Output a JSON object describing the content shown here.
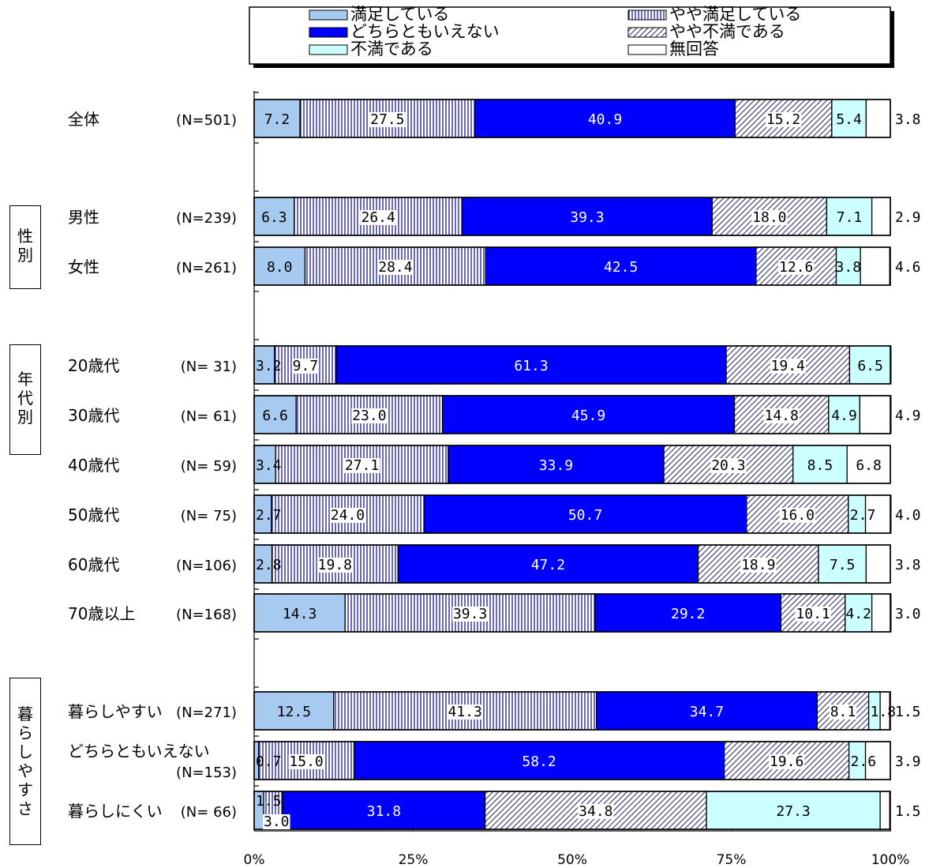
{
  "legend": {
    "items": [
      "満足している",
      "やや満足している",
      "どちらともいえない",
      "やや不満である",
      "不満である",
      "無回答"
    ]
  },
  "groups": [
    {
      "label": "性別"
    },
    {
      "label": "年代別"
    },
    {
      "label": "暮らしやすさ"
    }
  ],
  "colors": {
    "satisfied": "#a6caf0",
    "neutral": "#0000ff",
    "dissatisfied": "#ccffff",
    "no_answer": "#ffffff"
  },
  "chart_data": {
    "type": "bar",
    "orientation": "horizontal",
    "stacked": "percent",
    "xlim": [
      0,
      100
    ],
    "x_ticks": [
      "0%",
      "25%",
      "50%",
      "75%",
      "100%"
    ],
    "grid": false,
    "legend_position": "top",
    "series": [
      {
        "name": "満足している",
        "values": [
          7.2,
          6.3,
          8.0,
          3.2,
          6.6,
          3.4,
          2.7,
          2.8,
          14.3,
          12.5,
          0.7,
          1.5
        ]
      },
      {
        "name": "やや満足している",
        "values": [
          27.5,
          26.4,
          28.4,
          9.7,
          23.0,
          27.1,
          24.0,
          19.8,
          39.3,
          41.3,
          15.0,
          3.0
        ]
      },
      {
        "name": "どちらともいえない",
        "values": [
          40.9,
          39.3,
          42.5,
          61.3,
          45.9,
          33.9,
          50.7,
          47.2,
          29.2,
          34.7,
          58.2,
          31.8
        ]
      },
      {
        "name": "やや不満である",
        "values": [
          15.2,
          18.0,
          12.6,
          19.4,
          14.8,
          20.3,
          16.0,
          18.9,
          10.1,
          8.1,
          19.6,
          34.8
        ]
      },
      {
        "name": "不満である",
        "values": [
          5.4,
          7.1,
          3.8,
          6.5,
          4.9,
          8.5,
          2.7,
          7.5,
          4.2,
          1.8,
          2.6,
          27.3
        ]
      },
      {
        "name": "無回答",
        "values": [
          3.8,
          2.9,
          4.6,
          0,
          4.9,
          6.8,
          4.0,
          3.8,
          3.0,
          1.5,
          3.9,
          1.5
        ]
      }
    ],
    "rows": [
      {
        "label": "全体",
        "n": "(N=501)"
      },
      {
        "label": "男性",
        "n": "(N=239)"
      },
      {
        "label": "女性",
        "n": "(N=261)"
      },
      {
        "label": "20歳代",
        "n": "(N= 31)"
      },
      {
        "label": "30歳代",
        "n": "(N= 61)"
      },
      {
        "label": "40歳代",
        "n": "(N= 59)"
      },
      {
        "label": "50歳代",
        "n": "(N= 75)"
      },
      {
        "label": "60歳代",
        "n": "(N=106)"
      },
      {
        "label": "70歳以上",
        "n": "(N=168)"
      },
      {
        "label": "暮らしやすい",
        "n": "(N=271)"
      },
      {
        "label": "どちらともいえない",
        "n": "(N=153)"
      },
      {
        "label": "暮らしにくい",
        "n": "(N= 66)"
      }
    ],
    "value_labels": [
      [
        "7.2",
        "27.5",
        "40.9",
        "15.2",
        "5.4",
        "3.8"
      ],
      [
        "6.3",
        "26.4",
        "39.3",
        "18.0",
        "7.1",
        "2.9"
      ],
      [
        "8.0",
        "28.4",
        "42.5",
        "12.6",
        "3.8",
        "4.6"
      ],
      [
        "3.2",
        "9.7",
        "61.3",
        "19.4",
        "6.5",
        ""
      ],
      [
        "6.6",
        "23.0",
        "45.9",
        "14.8",
        "4.9",
        "4.9"
      ],
      [
        "3.4",
        "27.1",
        "33.9",
        "20.3",
        "8.5",
        "6.8"
      ],
      [
        "2.7",
        "24.0",
        "50.7",
        "16.0",
        "2.7",
        "4.0"
      ],
      [
        "2.8",
        "19.8",
        "47.2",
        "18.9",
        "7.5",
        "3.8"
      ],
      [
        "14.3",
        "39.3",
        "29.2",
        "10.1",
        "4.2",
        "3.0"
      ],
      [
        "12.5",
        "41.3",
        "34.7",
        "8.1",
        "1.8",
        "1.5"
      ],
      [
        "0.7",
        "15.0",
        "58.2",
        "19.6",
        "2.6",
        "3.9"
      ],
      [
        "1.5",
        "3.0",
        "31.8",
        "34.8",
        "27.3",
        "1.5"
      ]
    ]
  }
}
